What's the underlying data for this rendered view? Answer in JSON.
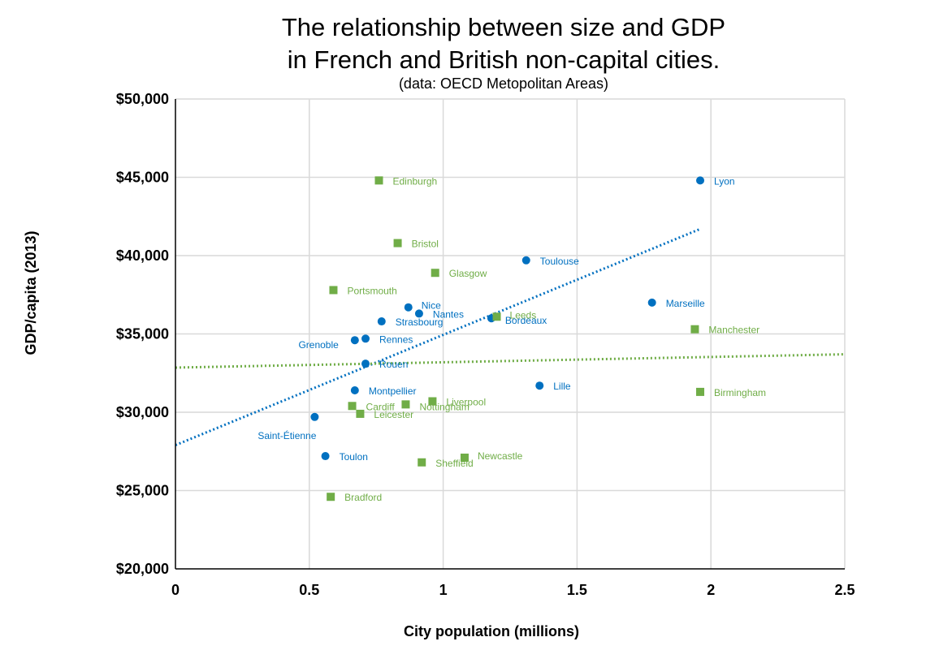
{
  "chart_data": {
    "type": "scatter",
    "title_lines": [
      "The relationship between size and GDP",
      "in French and British non-capital cities."
    ],
    "subtitle": "(data: OECD Metopolitan Areas)",
    "xlabel": "City population (millions)",
    "ylabel": "GDP/capita (2013)",
    "xlim": [
      0,
      2.5
    ],
    "ylim": [
      20000,
      50000
    ],
    "x_ticks": [
      0,
      0.5,
      1,
      1.5,
      2,
      2.5
    ],
    "x_tick_labels": [
      "0",
      "0.5",
      "1",
      "1.5",
      "2",
      "2.5"
    ],
    "y_ticks": [
      20000,
      25000,
      30000,
      35000,
      40000,
      45000,
      50000
    ],
    "y_tick_labels": [
      "$20,000",
      "$25,000",
      "$30,000",
      "$35,000",
      "$40,000",
      "$45,000",
      "$50,000"
    ],
    "grid": true,
    "series": [
      {
        "marker": "circle",
        "color": "#0070C0",
        "points": [
          {
            "label": "Lyon",
            "x": 1.96,
            "y": 44800,
            "label_pos": "right"
          },
          {
            "label": "Toulouse",
            "x": 1.31,
            "y": 39700,
            "label_pos": "right"
          },
          {
            "label": "Marseille",
            "x": 1.78,
            "y": 37000,
            "label_pos": "right"
          },
          {
            "label": "Nice",
            "x": 0.87,
            "y": 36700,
            "label_pos": "right-up"
          },
          {
            "label": "Nantes",
            "x": 0.91,
            "y": 36300,
            "label_pos": "right"
          },
          {
            "label": "Bordeaux",
            "x": 1.18,
            "y": 36000,
            "label_pos": "below-right"
          },
          {
            "label": "Strasbourg",
            "x": 0.77,
            "y": 35800,
            "label_pos": "right"
          },
          {
            "label": "Rennes",
            "x": 0.71,
            "y": 34700,
            "label_pos": "right"
          },
          {
            "label": "Grenoble",
            "x": 0.67,
            "y": 34600,
            "label_pos": "left-below"
          },
          {
            "label": "Rouen",
            "x": 0.71,
            "y": 33100,
            "label_pos": "right"
          },
          {
            "label": "Montpellier",
            "x": 0.67,
            "y": 31400,
            "label_pos": "right"
          },
          {
            "label": "Lille",
            "x": 1.36,
            "y": 31700,
            "label_pos": "right"
          },
          {
            "label": "Saint-Étienne",
            "x": 0.52,
            "y": 29700,
            "label_pos": "below-left"
          },
          {
            "label": "Toulon",
            "x": 0.56,
            "y": 27200,
            "label_pos": "right"
          }
        ]
      },
      {
        "marker": "square",
        "color": "#70AD47",
        "points": [
          {
            "label": "Edinburgh",
            "x": 0.76,
            "y": 44800,
            "label_pos": "right"
          },
          {
            "label": "Bristol",
            "x": 0.83,
            "y": 40800,
            "label_pos": "right"
          },
          {
            "label": "Glasgow",
            "x": 0.97,
            "y": 38900,
            "label_pos": "right"
          },
          {
            "label": "Portsmouth",
            "x": 0.59,
            "y": 37800,
            "label_pos": "right"
          },
          {
            "label": "Leeds",
            "x": 1.2,
            "y": 36100,
            "label_pos": "right-up"
          },
          {
            "label": "Manchester",
            "x": 1.94,
            "y": 35300,
            "label_pos": "right"
          },
          {
            "label": "Birmingham",
            "x": 1.96,
            "y": 31300,
            "label_pos": "right"
          },
          {
            "label": "Liverpool",
            "x": 0.96,
            "y": 30700,
            "label_pos": "right"
          },
          {
            "label": "Cardiff",
            "x": 0.66,
            "y": 30400,
            "label_pos": "right"
          },
          {
            "label": "Nottingham",
            "x": 0.86,
            "y": 30500,
            "label_pos": "below-right"
          },
          {
            "label": "Leicester",
            "x": 0.69,
            "y": 29900,
            "label_pos": "right"
          },
          {
            "label": "Newcastle",
            "x": 1.08,
            "y": 27100,
            "label_pos": "right-up"
          },
          {
            "label": "Sheffield",
            "x": 0.92,
            "y": 26800,
            "label_pos": "right"
          },
          {
            "label": "Bradford",
            "x": 0.58,
            "y": 24600,
            "label_pos": "right"
          }
        ]
      }
    ],
    "trendlines": [
      {
        "color": "#0070C0",
        "style": "dotted",
        "x": [
          0,
          1.96
        ],
        "y": [
          27900,
          41700
        ]
      },
      {
        "color": "#70AD47",
        "style": "dotted",
        "x": [
          0,
          2.5
        ],
        "y": [
          32850,
          33700
        ]
      }
    ]
  }
}
